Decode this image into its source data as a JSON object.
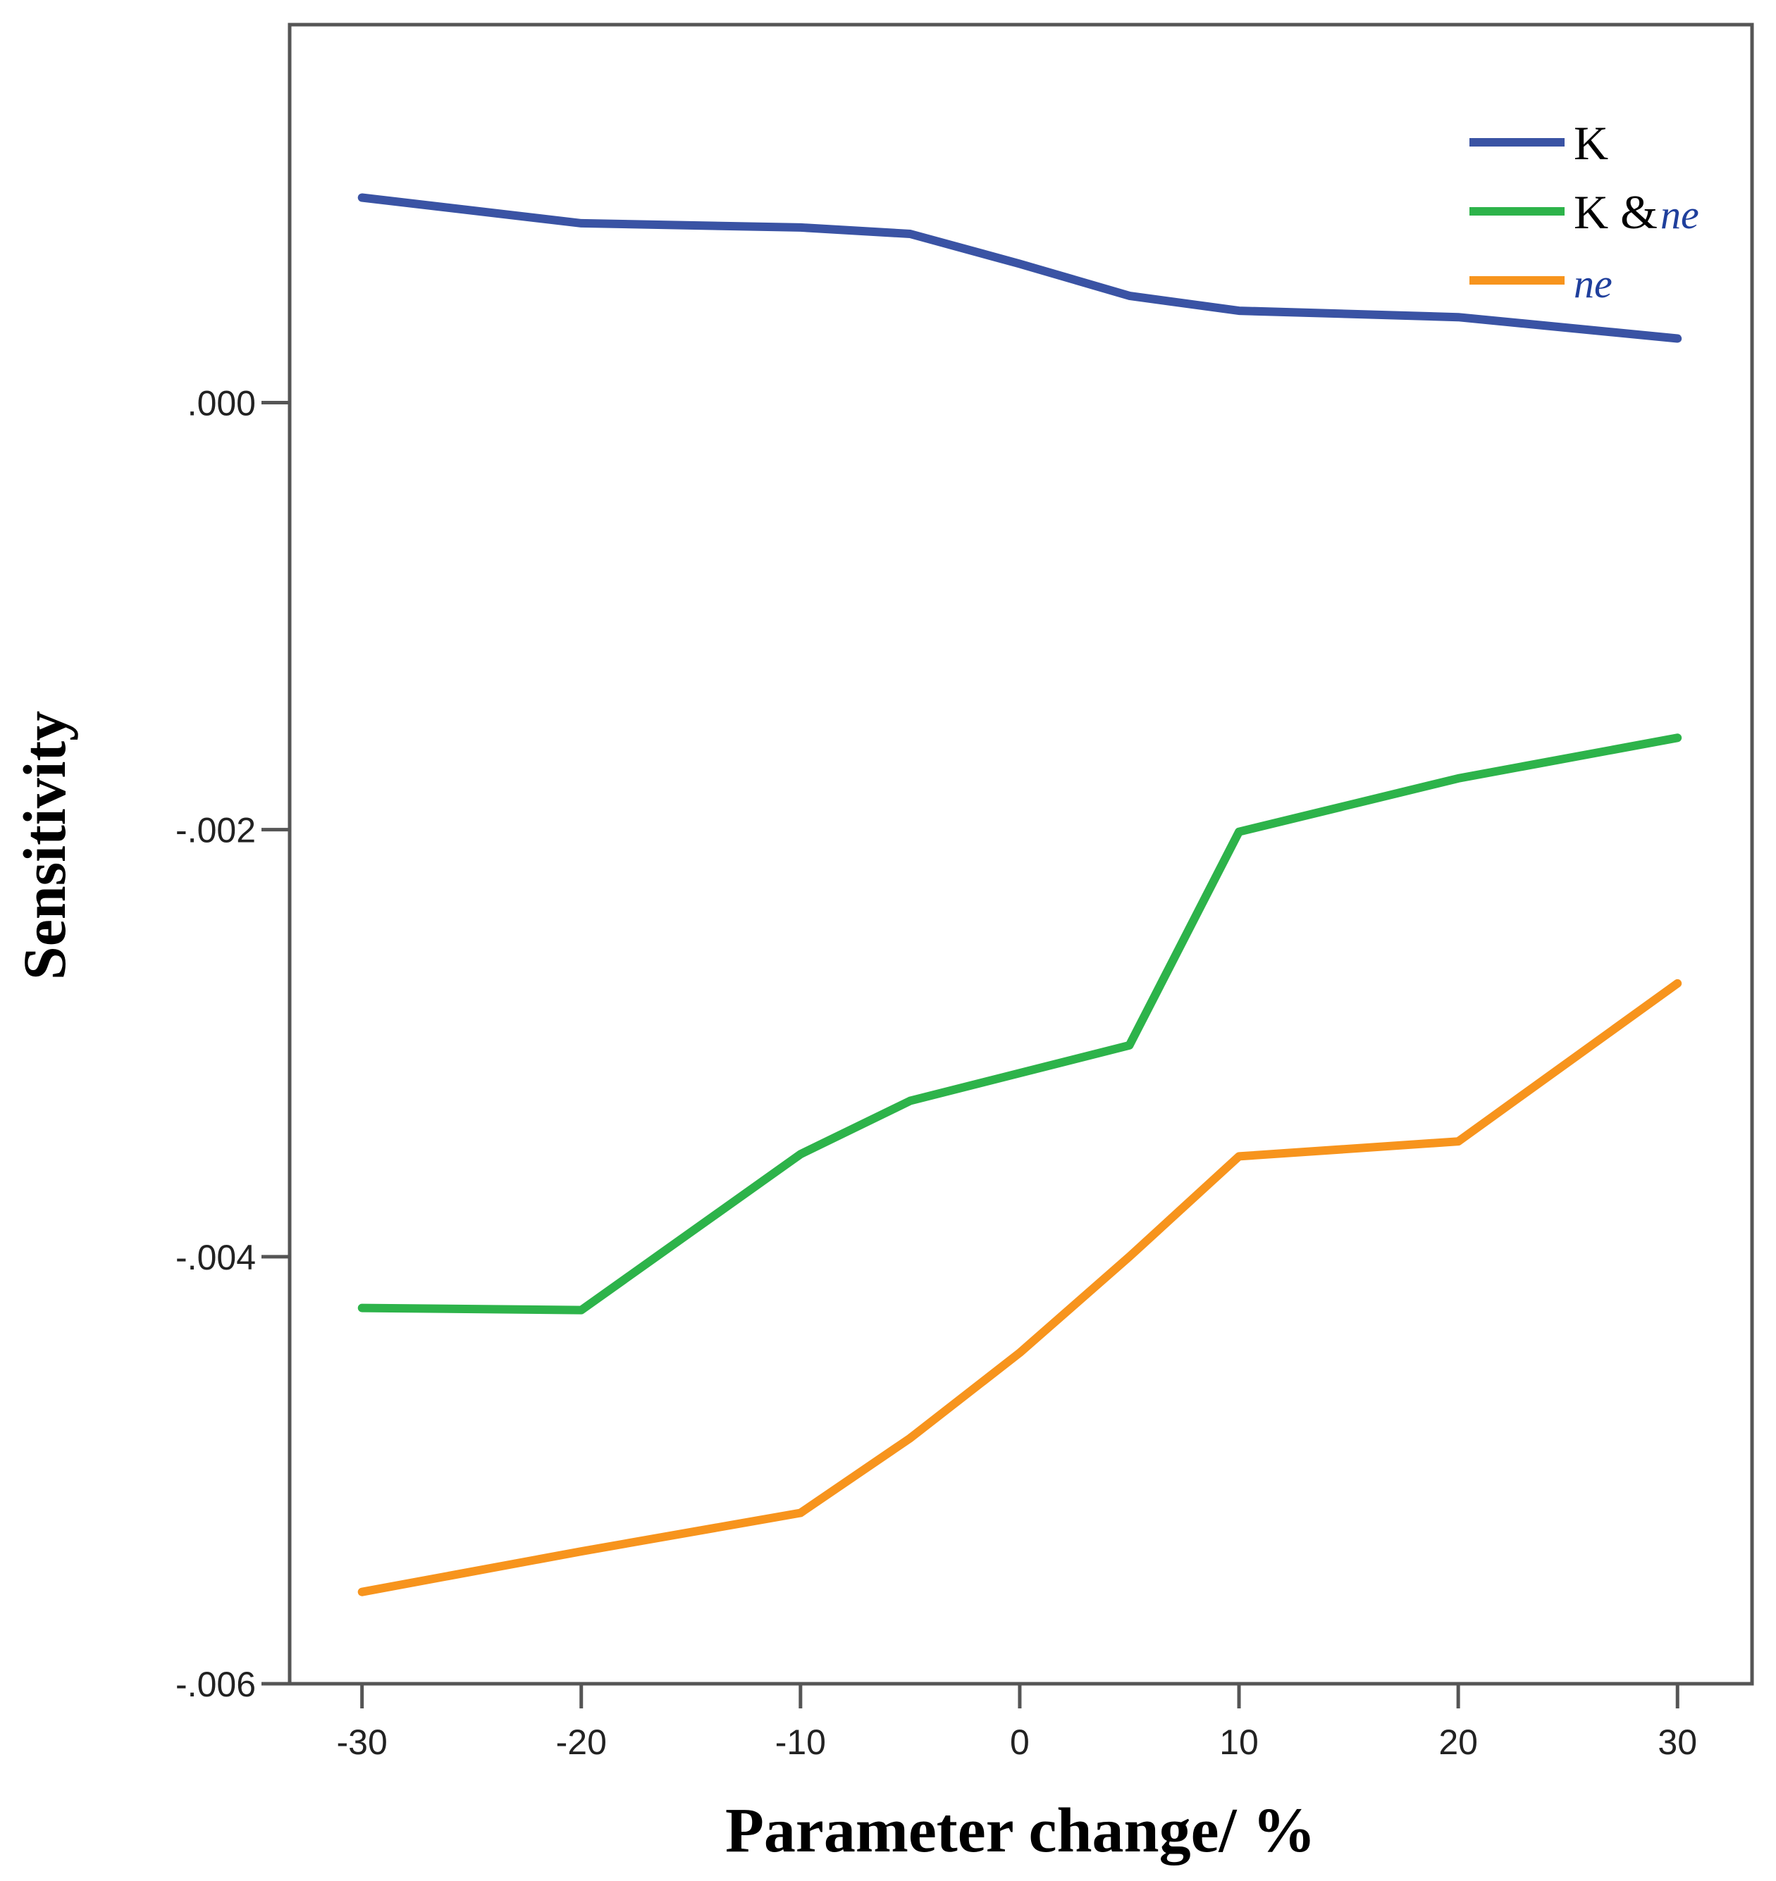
{
  "chart_data": {
    "type": "line",
    "title": "",
    "xlabel": "Parameter change/ %",
    "ylabel": "Sensitivity",
    "x": [
      -30,
      -20,
      -10,
      -5,
      0,
      5,
      10,
      20,
      30
    ],
    "xticks": [
      -30,
      -20,
      -10,
      0,
      10,
      20,
      30
    ],
    "xtick_labels": [
      "-30",
      "-20",
      "-10",
      "0",
      "10",
      "20",
      "30"
    ],
    "yticks": [
      0,
      -0.002,
      -0.004,
      -0.006
    ],
    "ytick_labels": [
      ".000",
      "-.002",
      "-.004",
      "-.006"
    ],
    "xlim": [
      -33.3,
      33.4
    ],
    "ylim": [
      -0.006,
      0.00177
    ],
    "grid": false,
    "legend_position": "top-right",
    "series": [
      {
        "name": "K",
        "label_main": "K",
        "label_italic": "",
        "color": "#3a53a4",
        "values": [
          0.00096,
          0.00084,
          0.00082,
          0.00079,
          0.00065,
          0.0005,
          0.00043,
          0.0004,
          0.0003
        ]
      },
      {
        "name": "K & ne",
        "label_main": "K &",
        "label_italic": "ne",
        "color": "#2db34a",
        "values": [
          -0.00424,
          -0.00425,
          -0.00352,
          -0.00327,
          -0.00314,
          -0.00301,
          -0.00201,
          -0.00176,
          -0.00157
        ]
      },
      {
        "name": "ne",
        "label_main": "",
        "label_italic": "ne",
        "color": "#f7941d",
        "values": [
          -0.00557,
          -0.00538,
          -0.0052,
          -0.00485,
          -0.00445,
          -0.004,
          -0.00353,
          -0.00346,
          -0.00272
        ]
      }
    ]
  }
}
